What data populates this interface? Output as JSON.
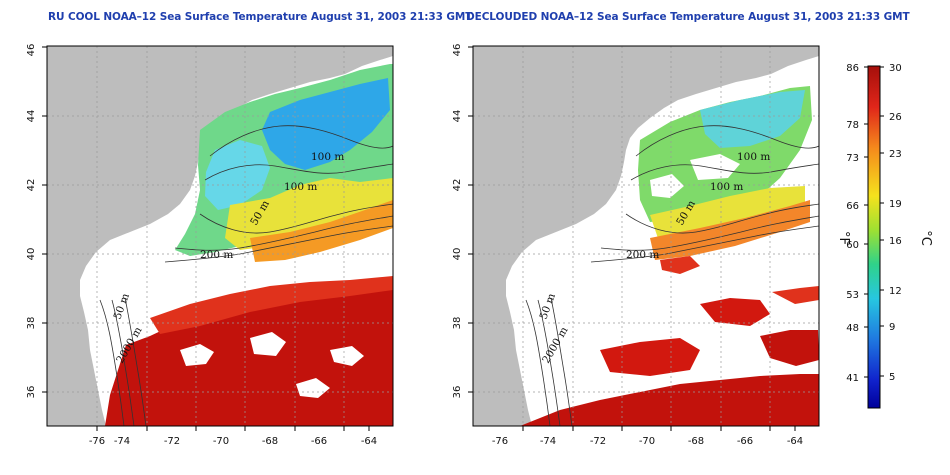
{
  "titles": {
    "left": "RU COOL NOAA–12 Sea Surface Temperature August 31, 2003 21:33 GMT",
    "right": "DECLOUDED NOAA–12 Sea Surface Temperature August 31, 2003 21:33 GMT"
  },
  "colors": {
    "title": "#1f3fae",
    "land": "#bdbdbd",
    "cloud": "#ffffff",
    "warm": "#c2120c",
    "cool": "#1ea0e6"
  },
  "map_axes": {
    "lon_ticks": [
      "-76",
      "-74",
      "-72",
      "-70",
      "-68",
      "-66",
      "-64"
    ],
    "lat_ticks": [
      "46",
      "44",
      "42",
      "40",
      "38",
      "36"
    ],
    "lon_range": [
      -77,
      -63
    ],
    "lat_range": [
      35,
      46
    ]
  },
  "contour_labels": {
    "left": [
      "100 m",
      "100 m",
      "50 m",
      "200 m",
      "50 m",
      "2000 m"
    ],
    "right": [
      "100 m",
      "100 m",
      "50 m",
      "200 m",
      "50 m",
      "2000 m"
    ]
  },
  "colorbar": {
    "fahrenheit_ticks": [
      "86",
      "78",
      "73",
      "66",
      "60",
      "53",
      "48",
      "41"
    ],
    "celsius_ticks": [
      "30",
      "26",
      "23",
      "19",
      "16",
      "12",
      "9",
      "5"
    ],
    "fahrenheit_unit": "°F",
    "celsius_unit": "°C",
    "stops": [
      "#a50f0b",
      "#e8281a",
      "#f58a1c",
      "#f5e21d",
      "#9ee032",
      "#2fd28a",
      "#27c7e0",
      "#1f78e0",
      "#1022cc",
      "#00009a"
    ]
  }
}
